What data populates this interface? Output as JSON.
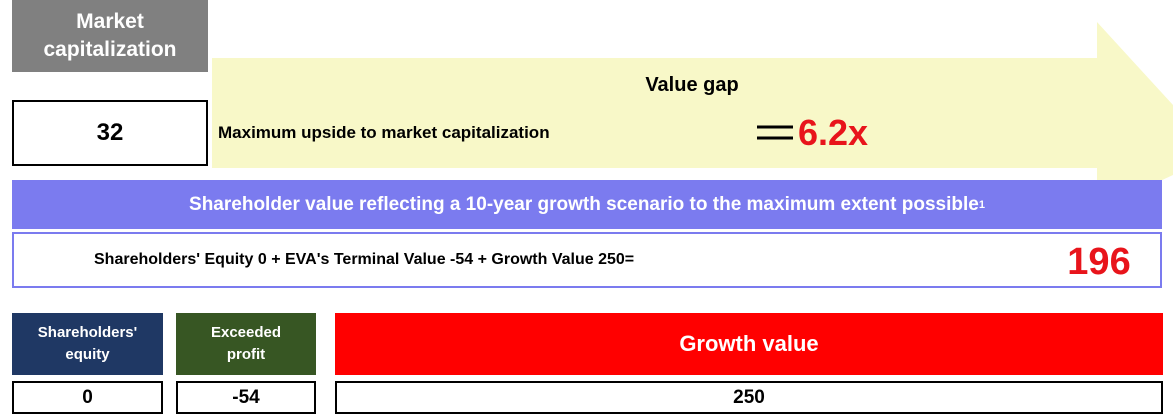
{
  "market_cap": {
    "label": "Market capitalization",
    "value": 32
  },
  "value_gap": {
    "title": "Value gap",
    "upside_label": "Maximum upside to market capitalization",
    "multiple": "6.2x"
  },
  "shareholder_value": {
    "title": "Shareholder value reflecting a 10-year growth scenario to the maximum extent possible",
    "footnote": "1",
    "equation": "Shareholders' Equity 0 + EVA's Terminal Value -54 + Growth Value 250=",
    "total": 196
  },
  "components": [
    {
      "label": "Shareholders' equity",
      "value": 0
    },
    {
      "label": "Exceeded profit",
      "value": -54
    },
    {
      "label": "Growth value",
      "value": 250
    }
  ]
}
